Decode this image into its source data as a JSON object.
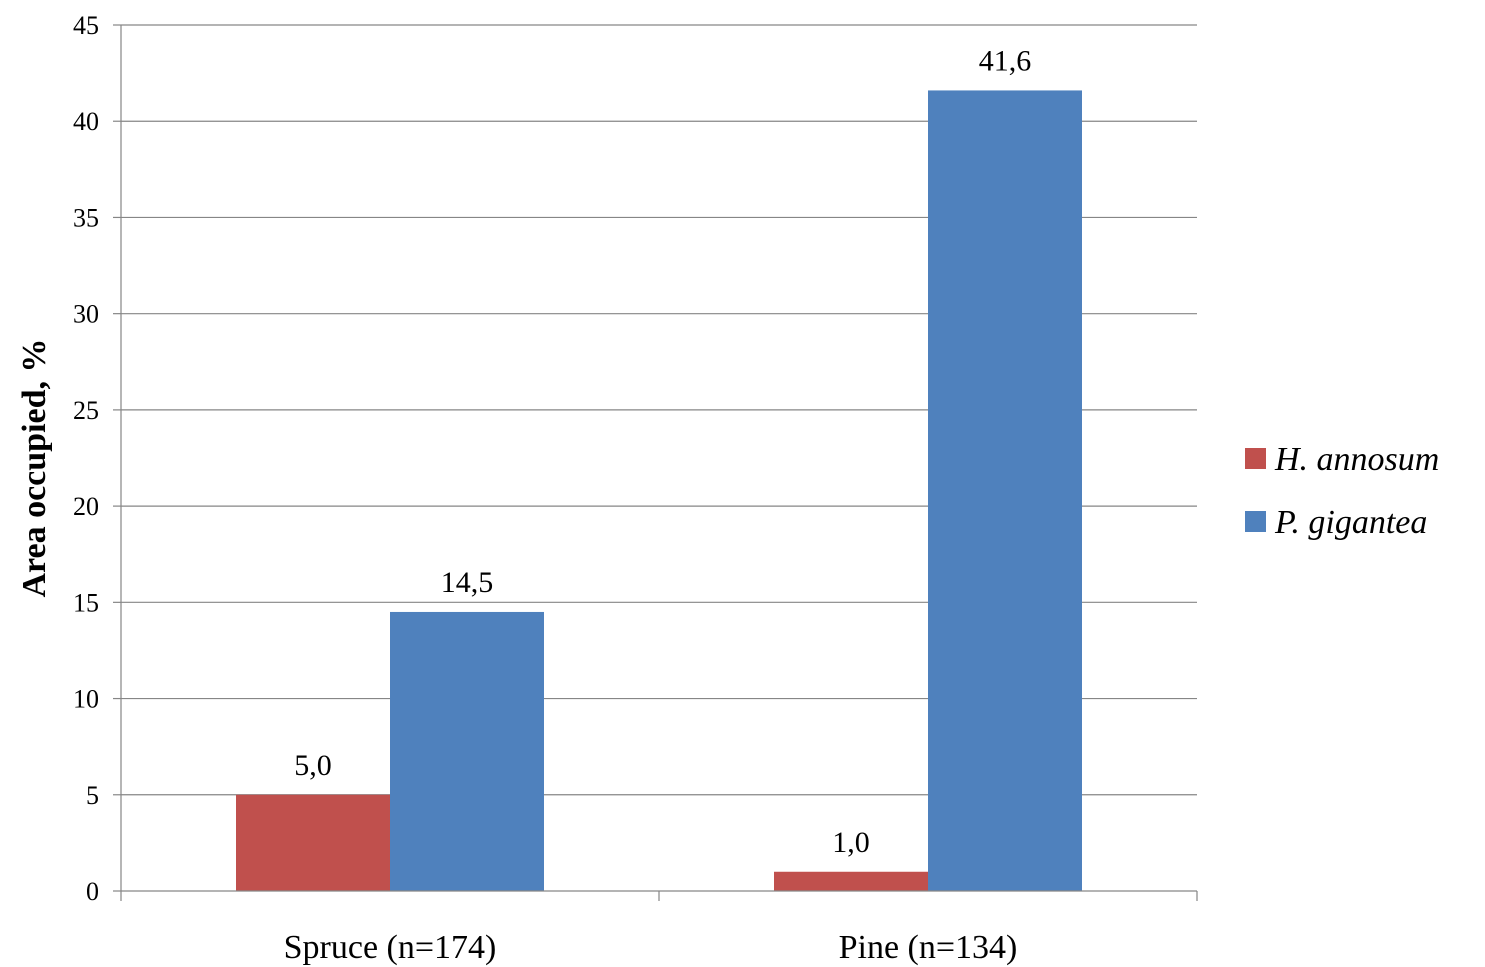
{
  "chart_data": {
    "type": "bar",
    "title": "",
    "xlabel": "",
    "ylabel": "Area occupied, %",
    "ylim": [
      0,
      45
    ],
    "yticks": [
      0,
      5,
      10,
      15,
      20,
      25,
      30,
      35,
      40,
      45
    ],
    "categories": [
      "Spruce (n=174)",
      "Pine (n=134)"
    ],
    "series": [
      {
        "name": "H. annosum",
        "color": "#C0504D",
        "values": [
          5.0,
          1.0
        ],
        "labels": [
          "5,0",
          "1,0"
        ]
      },
      {
        "name": "P. gigantea",
        "color": "#4F81BD",
        "values": [
          14.5,
          41.6
        ],
        "labels": [
          "14,5",
          "41,6"
        ]
      }
    ],
    "grid": true,
    "legend_position": "right"
  }
}
